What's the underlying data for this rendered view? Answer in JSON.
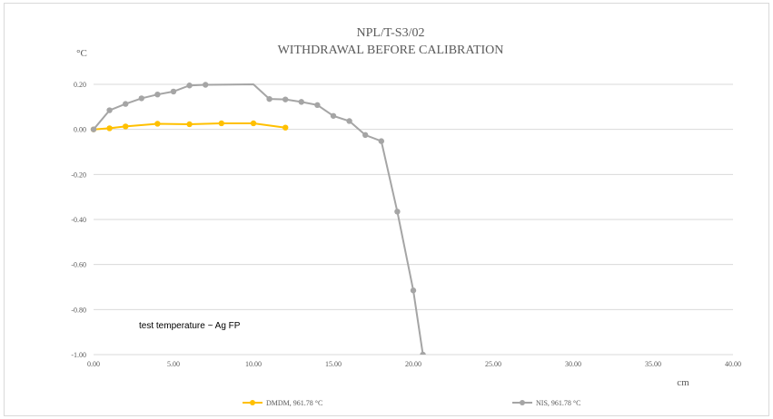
{
  "chart_data": {
    "type": "line",
    "title": "NPL/T-S3/02",
    "subtitle": "WITHDRAWAL BEFORE CALIBRATION",
    "ylabel": "°C",
    "xlabel": "cm",
    "annotation": "test temperature ~ Ag FP",
    "xlim": [
      0,
      40
    ],
    "ylim": [
      -1.0,
      0.2
    ],
    "xticks": [
      0,
      5,
      10,
      15,
      20,
      25,
      30,
      35,
      40
    ],
    "xtick_labels": [
      "0.00",
      "5.00",
      "10.00",
      "15.00",
      "20.00",
      "25.00",
      "30.00",
      "35.00",
      "40.00"
    ],
    "yticks": [
      0.2,
      0,
      -0.2,
      -0.4,
      -0.6,
      -0.8,
      -1.0
    ],
    "ytick_labels": [
      "0.20",
      "0.00",
      "-0.20",
      "-0.40",
      "-0.60",
      "-0.80",
      "-1.00"
    ],
    "grid": true,
    "legend_position": "bottom",
    "series": [
      {
        "name": "DMDM, 961.78 °C",
        "color": "#ffc000",
        "x": [
          0,
          1,
          2,
          4,
          6,
          8,
          10,
          12
        ],
        "y": [
          0.0,
          0.005,
          0.013,
          0.025,
          0.023,
          0.027,
          0.027,
          0.008
        ]
      },
      {
        "name": "NIS, 961.78 °C",
        "color": "#a5a5a5",
        "x": [
          0,
          1,
          2,
          3,
          4,
          5,
          6,
          7,
          10,
          11,
          12,
          13,
          14,
          15,
          16,
          17,
          18,
          19,
          20,
          20.6
        ],
        "y": [
          0.0,
          0.085,
          0.113,
          0.138,
          0.155,
          0.168,
          0.195,
          0.198,
          0.2,
          0.135,
          0.133,
          0.122,
          0.108,
          0.06,
          0.037,
          -0.025,
          -0.052,
          -0.365,
          -0.715,
          -1.0
        ]
      }
    ]
  }
}
